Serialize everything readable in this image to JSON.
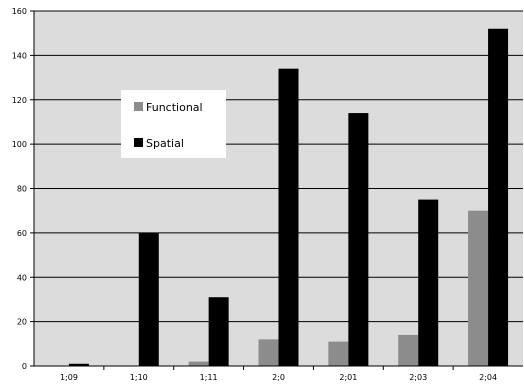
{
  "chart_data": {
    "type": "bar",
    "categories": [
      "1;09",
      "1;10",
      "1;11",
      "2;0",
      "2;01",
      "2;03",
      "2;04"
    ],
    "series": [
      {
        "name": "Functional",
        "values": [
          0,
          0,
          2,
          12,
          11,
          14,
          70
        ],
        "color": "#8c8c8c"
      },
      {
        "name": "Spatial",
        "values": [
          1,
          60,
          31,
          134,
          114,
          75,
          152
        ],
        "color": "#000000"
      }
    ],
    "ylim": [
      0,
      160
    ],
    "y_ticks": [
      0,
      20,
      40,
      60,
      80,
      100,
      120,
      140,
      160
    ],
    "grid": true,
    "legend_placement": "inside-left",
    "plot_background": "#dcdcdc",
    "title": "",
    "xlabel": "",
    "ylabel": ""
  }
}
